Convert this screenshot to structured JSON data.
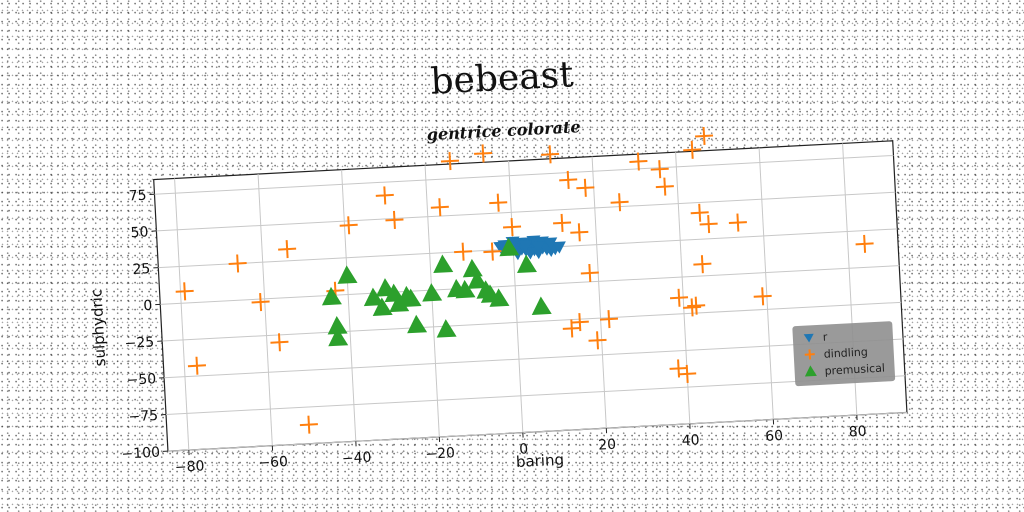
{
  "chart_data": {
    "type": "scatter",
    "title": "bebeast",
    "subtitle": "gentrice colorate",
    "xlabel": "baring",
    "ylabel": "sulphydric",
    "xlim": [
      -85,
      92
    ],
    "ylim": [
      -100,
      85
    ],
    "xticks": [
      -80,
      -60,
      -40,
      -20,
      0,
      20,
      40,
      60,
      80
    ],
    "yticks": [
      -100,
      -75,
      -50,
      -25,
      0,
      25,
      50,
      75
    ],
    "grid": true,
    "legend_position": "lower-right",
    "series": [
      {
        "name": "r",
        "marker": "triangle-down",
        "color": "#1f77b4",
        "points": [
          [
            -2,
            28
          ],
          [
            -1,
            26
          ],
          [
            0,
            30
          ],
          [
            1,
            27
          ],
          [
            2,
            25
          ],
          [
            3,
            29
          ],
          [
            4,
            26
          ],
          [
            5,
            24
          ],
          [
            6,
            28
          ],
          [
            7,
            25
          ],
          [
            8,
            27
          ],
          [
            9,
            23
          ],
          [
            1,
            22
          ],
          [
            3,
            24
          ],
          [
            5,
            30
          ],
          [
            7,
            29
          ],
          [
            2,
            29
          ],
          [
            4,
            22
          ],
          [
            6,
            22
          ],
          [
            8,
            24
          ],
          [
            0,
            25
          ],
          [
            10,
            24
          ],
          [
            9,
            28
          ],
          [
            3,
            27
          ],
          [
            -3,
            27
          ],
          [
            11,
            25
          ],
          [
            6,
            26
          ]
        ]
      },
      {
        "name": "dindling",
        "marker": "plus",
        "color": "#ff7f0e",
        "points": [
          [
            -79,
            8
          ],
          [
            -77,
            -43
          ],
          [
            -66,
            25
          ],
          [
            -61,
            -2
          ],
          [
            -57,
            -30
          ],
          [
            -54,
            33
          ],
          [
            -51,
            -87
          ],
          [
            -43,
            3
          ],
          [
            -39,
            47
          ],
          [
            -30,
            66
          ],
          [
            -28,
            49
          ],
          [
            -17,
            56
          ],
          [
            -14,
            87
          ],
          [
            -12,
            25
          ],
          [
            -6,
            91
          ],
          [
            -3,
            57
          ],
          [
            -5,
            24
          ],
          [
            0,
            40
          ],
          [
            10,
            88
          ],
          [
            12,
            41
          ],
          [
            13,
            -31
          ],
          [
            14,
            70
          ],
          [
            15,
            -27
          ],
          [
            16,
            34
          ],
          [
            18,
            64
          ],
          [
            18,
            6
          ],
          [
            19,
            -40
          ],
          [
            22,
            -26
          ],
          [
            26,
            53
          ],
          [
            31,
            80
          ],
          [
            36,
            74
          ],
          [
            37,
            62
          ],
          [
            38,
            -62
          ],
          [
            39,
            -14
          ],
          [
            40,
            -66
          ],
          [
            42,
            -21
          ],
          [
            43,
            -20
          ],
          [
            44,
            86
          ],
          [
            45,
            43
          ],
          [
            45,
            8
          ],
          [
            47,
            35
          ],
          [
            47,
            95
          ],
          [
            54,
            35
          ],
          [
            59,
            -16
          ],
          [
            84,
            16
          ]
        ]
      },
      {
        "name": "premusical",
        "marker": "triangle-up",
        "color": "#2ca02c",
        "points": [
          [
            -44,
            -1
          ],
          [
            -43,
            -21
          ],
          [
            -43,
            -29
          ],
          [
            -40,
            13
          ],
          [
            -34,
            -3
          ],
          [
            -32,
            -10
          ],
          [
            -31,
            3
          ],
          [
            -29,
            -1
          ],
          [
            -28,
            -8
          ],
          [
            -26,
            -3
          ],
          [
            -25,
            -5
          ],
          [
            -24,
            -23
          ],
          [
            -20,
            -2
          ],
          [
            -17,
            17
          ],
          [
            -17,
            -27
          ],
          [
            -14,
            0
          ],
          [
            -12,
            -1
          ],
          [
            -10,
            13
          ],
          [
            -9,
            5
          ],
          [
            -7,
            -2
          ],
          [
            -6,
            -5
          ],
          [
            -4,
            -8
          ],
          [
            -1,
            26
          ],
          [
            3,
            14
          ],
          [
            6,
            -15
          ]
        ]
      }
    ]
  }
}
